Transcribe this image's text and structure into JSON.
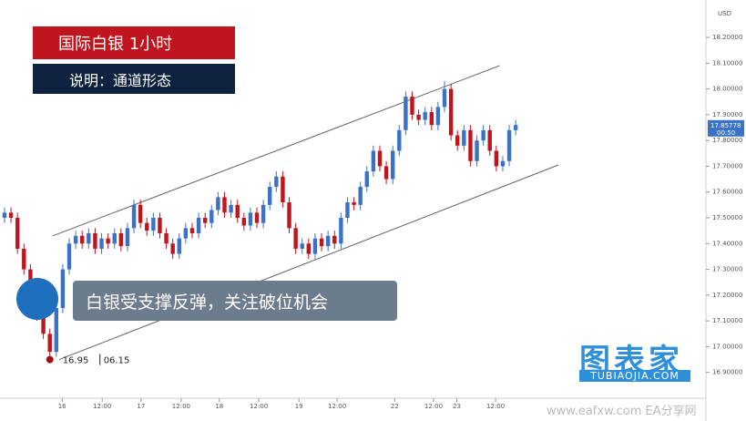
{
  "chart_data": {
    "type": "candlestick",
    "title": "国际白银  1小时",
    "subtitle": "说明：通道形态",
    "annotation": "白银受支撑反弹，关注破位机会",
    "currency": "USD",
    "watermarks": [
      "图表家",
      "TUBIAOJIA.COM",
      "www.eafxw.com EA分享网"
    ],
    "up_color": "#3a72c8",
    "down_color": "#c0141e",
    "open": [
      17.5,
      17.52,
      17.5,
      17.38,
      17.3,
      17.22,
      17.12,
      17.05,
      16.98,
      17.15,
      17.3,
      17.4,
      17.43,
      17.4,
      17.44,
      17.38,
      17.42,
      17.4,
      17.44,
      17.39,
      17.46,
      17.55,
      17.48,
      17.45,
      17.5,
      17.44,
      17.4,
      17.36,
      17.42,
      17.46,
      17.44,
      17.5,
      17.48,
      17.53,
      17.58,
      17.52,
      17.55,
      17.5,
      17.47,
      17.52,
      17.48,
      17.55,
      17.62,
      17.66,
      17.56,
      17.46,
      17.38,
      17.4,
      17.36,
      17.42,
      17.39,
      17.43,
      17.4,
      17.5,
      17.56,
      17.55,
      17.62,
      17.68,
      17.76,
      17.7,
      17.65,
      17.76,
      17.84,
      17.97,
      17.9,
      17.88,
      17.91,
      17.86,
      17.93,
      18.0,
      17.82,
      17.78,
      17.84,
      17.72,
      17.8,
      17.84,
      17.76,
      17.7,
      17.72,
      17.84
    ],
    "high": [
      17.54,
      17.54,
      17.52,
      17.4,
      17.32,
      17.24,
      17.14,
      17.07,
      17.17,
      17.32,
      17.42,
      17.45,
      17.45,
      17.46,
      17.46,
      17.44,
      17.44,
      17.46,
      17.46,
      17.48,
      17.57,
      17.57,
      17.5,
      17.52,
      17.52,
      17.46,
      17.42,
      17.44,
      17.48,
      17.48,
      17.52,
      17.52,
      17.55,
      17.6,
      17.6,
      17.57,
      17.57,
      17.52,
      17.54,
      17.54,
      17.57,
      17.64,
      17.68,
      17.68,
      17.58,
      17.48,
      17.42,
      17.42,
      17.44,
      17.44,
      17.45,
      17.45,
      17.52,
      17.58,
      17.58,
      17.64,
      17.7,
      17.78,
      17.78,
      17.72,
      17.78,
      17.86,
      17.99,
      17.99,
      17.92,
      17.93,
      17.93,
      17.95,
      18.03,
      18.02,
      17.84,
      17.86,
      17.86,
      17.82,
      17.86,
      17.86,
      17.78,
      17.74,
      17.86,
      17.88
    ],
    "low": [
      17.48,
      17.48,
      17.36,
      17.28,
      17.2,
      17.1,
      17.03,
      16.95,
      16.96,
      17.13,
      17.28,
      17.38,
      17.38,
      17.38,
      17.36,
      17.36,
      17.38,
      17.38,
      17.37,
      17.37,
      17.44,
      17.46,
      17.43,
      17.43,
      17.42,
      17.38,
      17.34,
      17.34,
      17.4,
      17.42,
      17.42,
      17.46,
      17.46,
      17.51,
      17.5,
      17.5,
      17.48,
      17.45,
      17.45,
      17.46,
      17.46,
      17.53,
      17.6,
      17.54,
      17.44,
      17.36,
      17.36,
      17.34,
      17.34,
      17.37,
      17.37,
      17.38,
      17.38,
      17.48,
      17.53,
      17.53,
      17.6,
      17.66,
      17.68,
      17.63,
      17.63,
      17.74,
      17.82,
      17.88,
      17.86,
      17.86,
      17.84,
      17.84,
      17.91,
      17.8,
      17.76,
      17.76,
      17.7,
      17.7,
      17.78,
      17.74,
      17.68,
      17.68,
      17.7,
      17.82
    ],
    "close": [
      17.52,
      17.5,
      17.38,
      17.3,
      17.22,
      17.12,
      17.05,
      16.98,
      17.15,
      17.3,
      17.4,
      17.43,
      17.4,
      17.44,
      17.38,
      17.42,
      17.4,
      17.44,
      17.39,
      17.46,
      17.55,
      17.48,
      17.45,
      17.5,
      17.44,
      17.4,
      17.36,
      17.42,
      17.46,
      17.44,
      17.5,
      17.48,
      17.53,
      17.58,
      17.52,
      17.55,
      17.5,
      17.47,
      17.52,
      17.48,
      17.55,
      17.62,
      17.66,
      17.56,
      17.46,
      17.38,
      17.4,
      17.36,
      17.42,
      17.39,
      17.43,
      17.4,
      17.5,
      17.56,
      17.55,
      17.62,
      17.68,
      17.76,
      17.7,
      17.65,
      17.76,
      17.84,
      17.97,
      17.9,
      17.88,
      17.91,
      17.86,
      17.93,
      18.0,
      17.82,
      17.78,
      17.84,
      17.72,
      17.8,
      17.84,
      17.76,
      17.7,
      17.72,
      17.84,
      17.86
    ],
    "xlim": [
      -0.7,
      108.4
    ],
    "xticks": [
      {
        "value": 8.9,
        "label": "16"
      },
      {
        "value": 15.1,
        "label": "12:00"
      },
      {
        "value": 21.1,
        "label": "17"
      },
      {
        "value": 27.3,
        "label": "12:00"
      },
      {
        "value": 33.2,
        "label": "18"
      },
      {
        "value": 39.3,
        "label": "12:00"
      },
      {
        "value": 45.5,
        "label": "19"
      },
      {
        "value": 51.4,
        "label": "12:00"
      },
      {
        "value": 60.3,
        "label": "22"
      },
      {
        "value": 66.3,
        "label": "12:00"
      },
      {
        "value": 69.9,
        "label": "23"
      },
      {
        "value": 75.9,
        "label": "12:00"
      }
    ],
    "ylim": [
      16.8,
      18.345
    ],
    "yticks": [
      {
        "value": 16.9,
        "label": "16.90000"
      },
      {
        "value": 17.0,
        "label": "17.00000"
      },
      {
        "value": 17.1,
        "label": "17.10000"
      },
      {
        "value": 17.2,
        "label": "17.20000"
      },
      {
        "value": 17.3,
        "label": "17.30000"
      },
      {
        "value": 17.4,
        "label": "17.40000"
      },
      {
        "value": 17.5,
        "label": "17.50000"
      },
      {
        "value": 17.6,
        "label": "17.60000"
      },
      {
        "value": 17.7,
        "label": "17.70000"
      },
      {
        "value": 17.8,
        "label": "17.80000"
      },
      {
        "value": 17.9,
        "label": "17.90000"
      },
      {
        "value": 18.0,
        "label": "18.00000"
      },
      {
        "value": 18.1,
        "label": "18.10000"
      },
      {
        "value": 18.2,
        "label": "18.20000"
      }
    ],
    "trend_lines": [
      {
        "x": [
          7.46,
          76.5
        ],
        "y": [
          17.43,
          18.09
        ]
      },
      {
        "x": [
          8.45,
          85.6
        ],
        "y": [
          16.95,
          17.705
        ]
      }
    ],
    "low_marker": {
      "x": 7,
      "value": 16.95,
      "date": "06.15"
    },
    "last_price": {
      "value": 17.85778,
      "time": "00:50"
    }
  }
}
